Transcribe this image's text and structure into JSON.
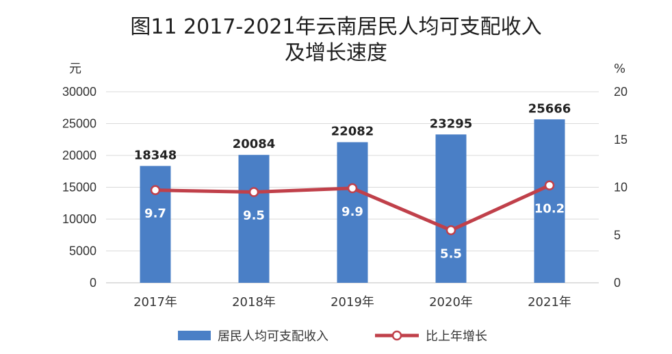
{
  "title_line1": "图11  2017-2021年云南居民人均可支配收入",
  "title_line2": "及增长速度",
  "chart_data": {
    "type": "bar",
    "categories": [
      "2017年",
      "2018年",
      "2019年",
      "2020年",
      "2021年"
    ],
    "series": [
      {
        "name": "居民人均可支配收入",
        "type": "bar",
        "axis": "left",
        "values": [
          18348,
          20084,
          22082,
          23295,
          25666
        ],
        "color": "#4a7fc6"
      },
      {
        "name": "比上年增长",
        "type": "line",
        "axis": "right",
        "values": [
          9.7,
          9.5,
          9.9,
          5.5,
          10.2
        ],
        "color": "#c0404a"
      }
    ],
    "y_left": {
      "unit": "元",
      "ylim": [
        0,
        30000
      ],
      "ticks": [
        "0",
        "5000",
        "10000",
        "15000",
        "20000",
        "25000",
        "30000"
      ]
    },
    "y_right": {
      "unit": "%",
      "ylim": [
        0,
        20
      ],
      "ticks": [
        "0",
        "5",
        "10",
        "15",
        "20"
      ]
    },
    "grid": true,
    "legend_position": "bottom"
  }
}
